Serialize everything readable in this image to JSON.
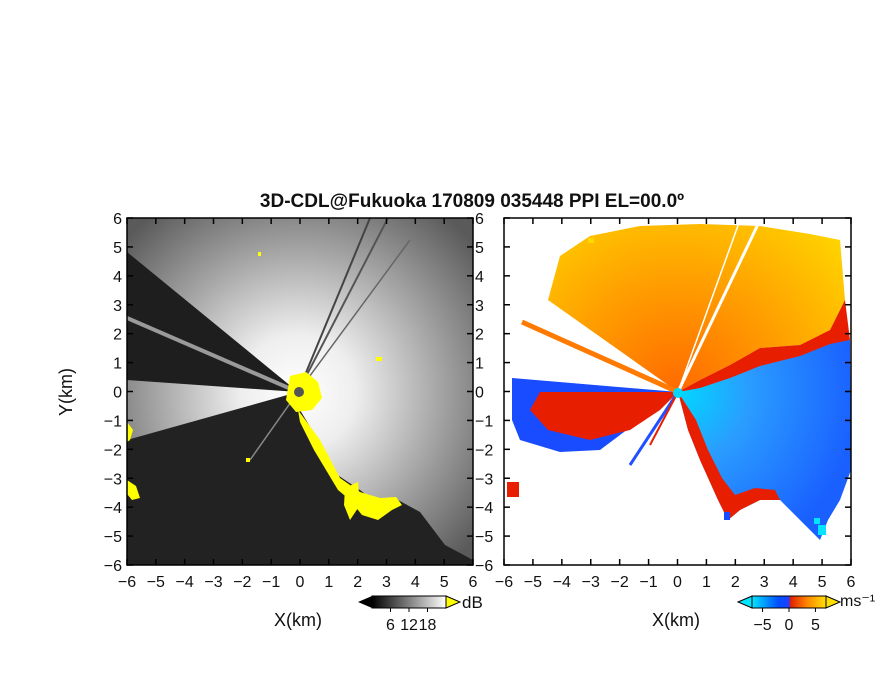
{
  "title": "3D-CDL@Fukuoka 170809 035448 PPI EL=00.0º",
  "chart_data": [
    {
      "type": "heatmap",
      "panel": "left",
      "quantity": "reflectivity",
      "xlabel": "X(km)",
      "ylabel": "Y(km)",
      "xlim": [
        -6,
        6
      ],
      "ylim": [
        -6,
        6
      ],
      "xticks": [
        -6,
        -5,
        -4,
        -3,
        -2,
        -1,
        0,
        1,
        2,
        3,
        4,
        5,
        6
      ],
      "yticks": [
        -6,
        -5,
        -4,
        -3,
        -2,
        -1,
        0,
        1,
        2,
        3,
        4,
        5,
        6
      ],
      "colorbar": {
        "unit": "dB",
        "ticks": [
          6,
          12,
          18
        ],
        "range": [
          0,
          24
        ],
        "colormap": [
          "#000000",
          "#ffffff"
        ],
        "overflow_color": "#ffff00"
      },
      "blocked_sectors_deg": [
        [
          135,
          180
        ],
        [
          200,
          325
        ]
      ],
      "grid": false
    },
    {
      "type": "heatmap",
      "panel": "right",
      "quantity": "doppler_velocity",
      "xlabel": "X(km)",
      "ylabel": "",
      "xlim": [
        -6,
        6
      ],
      "ylim": [
        -6,
        6
      ],
      "xticks": [
        -6,
        -5,
        -4,
        -3,
        -2,
        -1,
        0,
        1,
        2,
        3,
        4,
        5,
        6
      ],
      "yticks": [
        -6,
        -5,
        -4,
        -3,
        -2,
        -1,
        0,
        1,
        2,
        3,
        4,
        5,
        6
      ],
      "colorbar": {
        "unit": "ms⁻¹",
        "ticks": [
          -5,
          0,
          5
        ],
        "range": [
          -7,
          7
        ],
        "colormap": [
          "#00e5ff",
          "#0050ff",
          "#e02000",
          "#ff8800",
          "#ffe000"
        ]
      },
      "grid": false
    }
  ],
  "colors": {
    "overflow_yellow": "#ffff00",
    "velocity_cyan": "#00e5ff",
    "velocity_blue": "#1a5cff",
    "velocity_red": "#e81e00",
    "velocity_orange": "#ff9a00",
    "velocity_yellow": "#ffd800"
  }
}
